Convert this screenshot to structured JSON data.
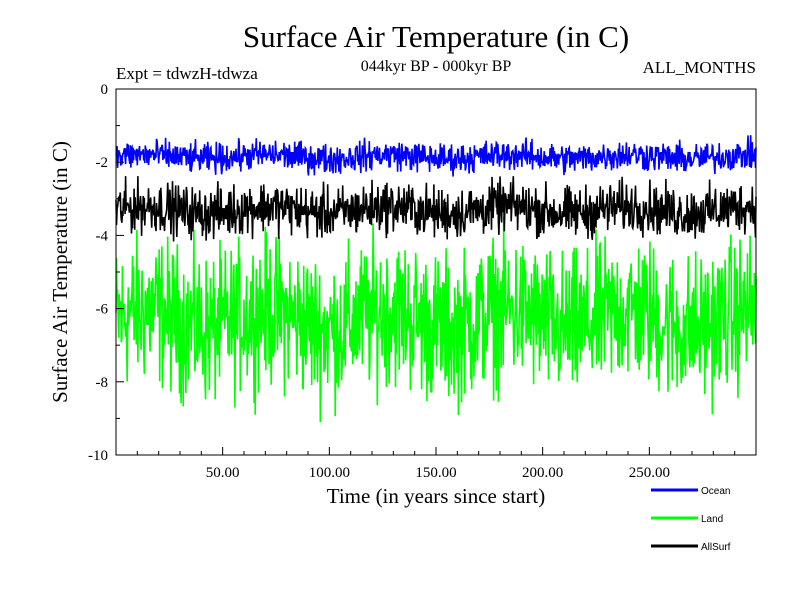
{
  "chart_data": {
    "type": "line",
    "title": "Surface Air Temperature (in C)",
    "subtitle": "044kyr BP - 000kyr BP",
    "experiment": "Expt = tdwzH-tdwza",
    "months": "ALL_MONTHS",
    "xlabel": "Time (in years since start)",
    "ylabel": "Surface Air Temperature (in C)",
    "xlim": [
      0,
      300
    ],
    "ylim": [
      -10,
      0
    ],
    "x_ticks": [
      50,
      100,
      150,
      200,
      250
    ],
    "x_tick_labels": [
      "50.00",
      "100.00",
      "150.00",
      "200.00",
      "250.00"
    ],
    "y_ticks": [
      0,
      -2,
      -4,
      -6,
      -8,
      -10
    ],
    "y_tick_labels": [
      "0",
      "-2",
      "-4",
      "-6",
      "-8",
      "-10"
    ],
    "grid": false,
    "legend_position": "bottom-right",
    "series": [
      {
        "name": "Ocean",
        "color": "#0000ff",
        "mean": -1.85,
        "min": -2.5,
        "max": -1.15
      },
      {
        "name": "Land",
        "color": "#00ff00",
        "mean": -6.3,
        "min": -9.8,
        "max": -3.2
      },
      {
        "name": "AllSurf",
        "color": "#000000",
        "mean": -3.3,
        "min": -4.6,
        "max": -2.3
      }
    ]
  }
}
